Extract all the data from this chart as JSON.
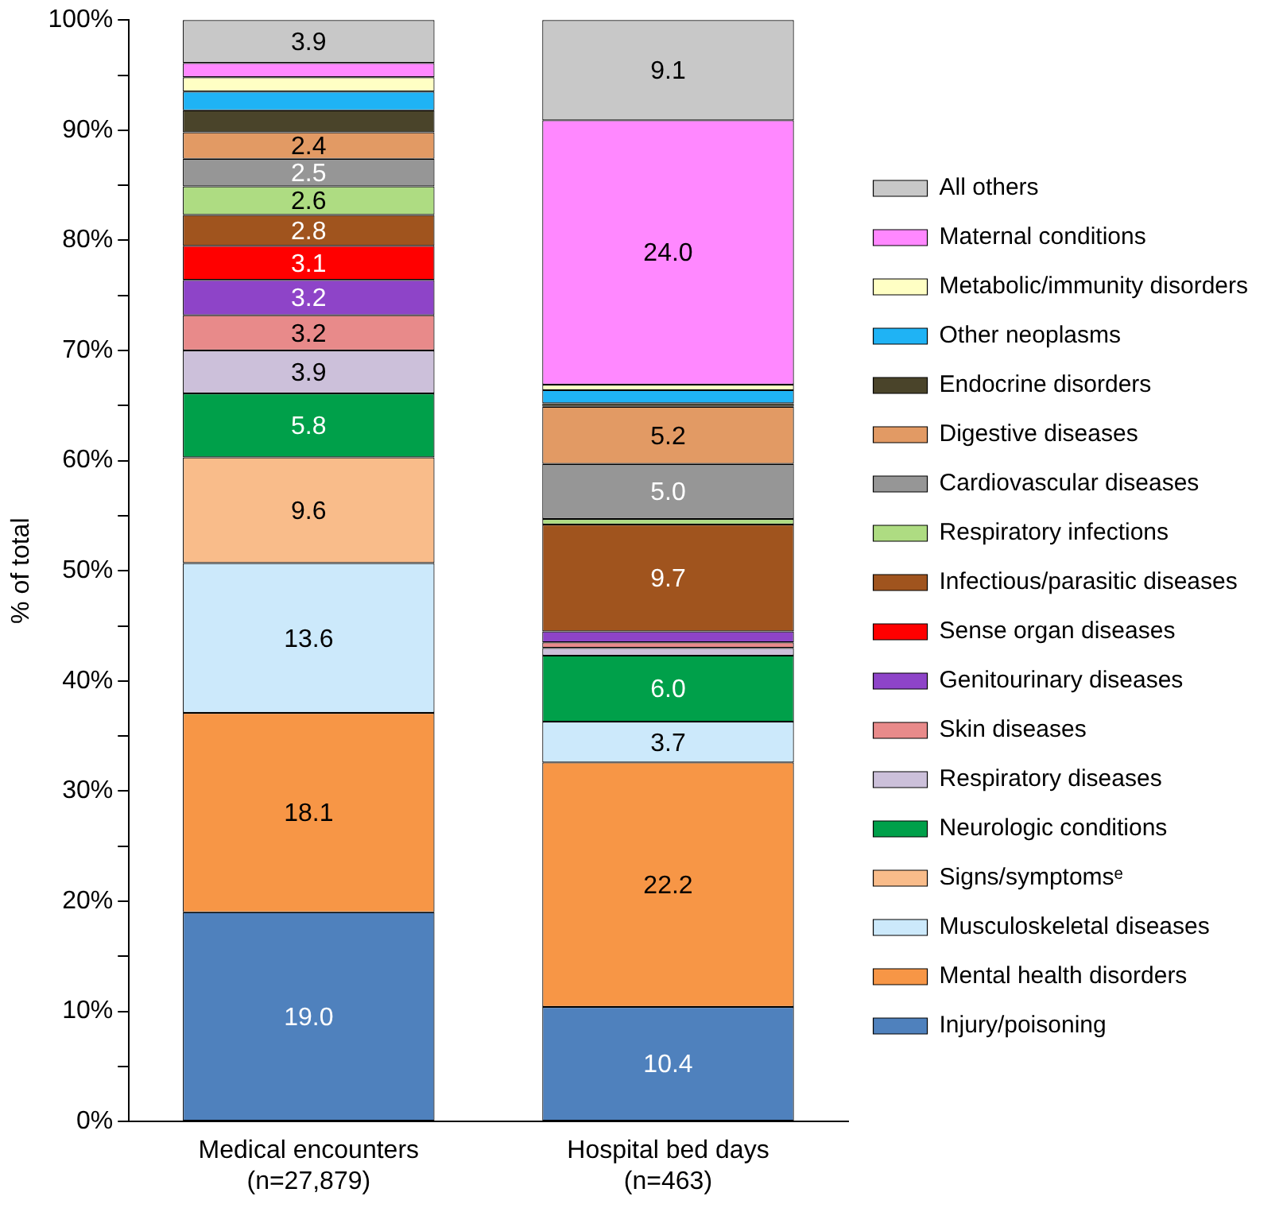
{
  "chart_data": {
    "type": "bar",
    "stacked": true,
    "ylabel": "% of total",
    "categories": [
      "Medical encounters\n(n=27,879)",
      "Hospital bed days\n(n=463)"
    ],
    "ylim": [
      0,
      100
    ],
    "yticks": [
      {
        "value": 0,
        "label": "0%"
      },
      {
        "value": 5,
        "label": null
      },
      {
        "value": 10,
        "label": "10%"
      },
      {
        "value": 15,
        "label": null
      },
      {
        "value": 20,
        "label": "20%"
      },
      {
        "value": 25,
        "label": null
      },
      {
        "value": 30,
        "label": "30%"
      },
      {
        "value": 35,
        "label": null
      },
      {
        "value": 40,
        "label": "40%"
      },
      {
        "value": 45,
        "label": null
      },
      {
        "value": 50,
        "label": "50%"
      },
      {
        "value": 55,
        "label": null
      },
      {
        "value": 60,
        "label": "60%"
      },
      {
        "value": 65,
        "label": null
      },
      {
        "value": 70,
        "label": "70%"
      },
      {
        "value": 75,
        "label": null
      },
      {
        "value": 80,
        "label": "80%"
      },
      {
        "value": 85,
        "label": null
      },
      {
        "value": 90,
        "label": "90%"
      },
      {
        "value": 95,
        "label": null
      },
      {
        "value": 100,
        "label": "100%"
      }
    ],
    "grid": false,
    "legend": "right",
    "series": [
      {
        "name": "Injury/poisoning",
        "color": "#4f81bd",
        "values": [
          19.0,
          10.4
        ],
        "value_labels": [
          "19.0",
          "10.4"
        ]
      },
      {
        "name": "Mental health disorders",
        "color": "#f79646",
        "values": [
          18.1,
          22.2
        ],
        "value_labels": [
          "18.1",
          "22.2"
        ]
      },
      {
        "name": "Musculoskeletal diseases",
        "color": "#cce9fb",
        "values": [
          13.6,
          3.7
        ],
        "value_labels": [
          "13.6",
          "3.7"
        ]
      },
      {
        "name": "Signs/symptomsᵉ",
        "color": "#f9bc8a",
        "values": [
          9.6,
          0.0
        ],
        "value_labels": [
          "9.6",
          null
        ]
      },
      {
        "name": "Neurologic conditions",
        "color": "#00a04a",
        "values": [
          5.8,
          6.0
        ],
        "value_labels": [
          "5.8",
          "6.0"
        ]
      },
      {
        "name": "Respiratory diseases",
        "color": "#ccc0da",
        "values": [
          3.9,
          0.7
        ],
        "value_labels": [
          "3.9",
          null
        ]
      },
      {
        "name": "Skin diseases",
        "color": "#e88a8a",
        "values": [
          3.2,
          0.5
        ],
        "value_labels": [
          "3.2",
          null
        ]
      },
      {
        "name": "Genitourinary diseases",
        "color": "#8e44c8",
        "values": [
          3.2,
          1.0
        ],
        "value_labels": [
          "3.2",
          null
        ]
      },
      {
        "name": "Sense organ diseases",
        "color": "#ff0000",
        "values": [
          3.1,
          0.0
        ],
        "value_labels": [
          "3.1",
          null
        ]
      },
      {
        "name": "Infectious/parasitic diseases",
        "color": "#a0541e",
        "values": [
          2.8,
          9.7
        ],
        "value_labels": [
          "2.8",
          "9.7"
        ]
      },
      {
        "name": "Respiratory infections",
        "color": "#aedc82",
        "values": [
          2.6,
          0.5
        ],
        "value_labels": [
          "2.6",
          null
        ]
      },
      {
        "name": "Cardiovascular diseases",
        "color": "#969696",
        "values": [
          2.5,
          5.0
        ],
        "value_labels": [
          "2.5",
          "5.0"
        ]
      },
      {
        "name": "Digestive diseases",
        "color": "#e29a64",
        "values": [
          2.4,
          5.2
        ],
        "value_labels": [
          "2.4",
          "5.2"
        ]
      },
      {
        "name": "Endocrine disorders",
        "color": "#4a442a",
        "values": [
          2.0,
          0.3
        ],
        "value_labels": [
          null,
          null
        ]
      },
      {
        "name": "Other neoplasms",
        "color": "#1fb3f5",
        "values": [
          1.7,
          1.2
        ],
        "value_labels": [
          null,
          null
        ]
      },
      {
        "name": "Metabolic/immunity disorders",
        "color": "#ffffc4",
        "values": [
          1.3,
          0.5
        ],
        "value_labels": [
          null,
          null
        ]
      },
      {
        "name": "Maternal conditions",
        "color": "#ff88ff",
        "values": [
          1.3,
          24.0
        ],
        "value_labels": [
          null,
          "24.0"
        ]
      },
      {
        "name": "All others",
        "color": "#c8c8c8",
        "values": [
          3.9,
          9.1
        ],
        "value_labels": [
          "3.9",
          "9.1"
        ]
      }
    ]
  }
}
